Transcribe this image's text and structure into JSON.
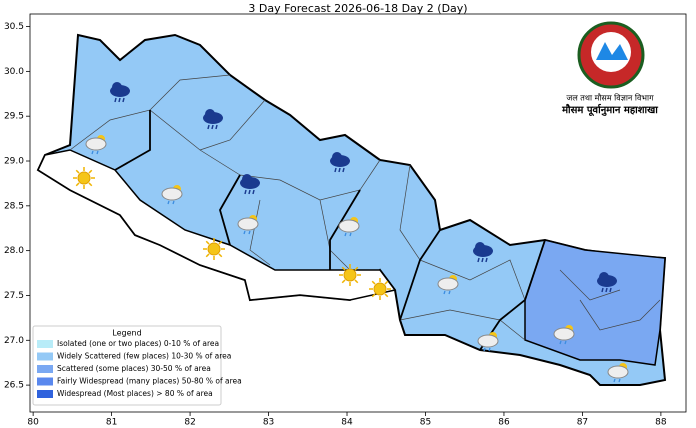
{
  "chart_data": {
    "type": "map",
    "title": "3 Day Forecast 2026-06-18 Day 2 (Day)",
    "xlim": [
      79.96,
      88.32
    ],
    "ylim": [
      26.2,
      30.64
    ],
    "xticks": [
      80,
      81,
      82,
      83,
      84,
      85,
      86,
      87,
      88
    ],
    "yticks": [
      26.5,
      {
        "value": 27,
        "label": "27.0"
      },
      27.5,
      {
        "value": 28,
        "label": "28.0"
      },
      28.5,
      {
        "value": 29,
        "label": "29.0"
      },
      29.5,
      {
        "value": 30,
        "label": "30.0"
      },
      30.5
    ],
    "legend": {
      "title": "Legend",
      "entries": [
        {
          "label": "Isolated (one or two places)  0-10 % of area",
          "color": "#b8ecf8"
        },
        {
          "label": "Widely Scattered (few places)  10-30 % of area",
          "color": "#94c9f6"
        },
        {
          "label": "Scattered (some places)  30-50 % of area",
          "color": "#7aa8f2"
        },
        {
          "label": "Fairly Widespread (many places)  50-80 % of area",
          "color": "#5a88ee"
        },
        {
          "label": "Widespread (Most places) > 80 % of area",
          "color": "#2f62dd"
        }
      ]
    },
    "logo": {
      "line1": "जल तथा मौसम विज्ञान विभाग",
      "line2": "मौसम पूर्वानुमान महाशाखा"
    }
  }
}
